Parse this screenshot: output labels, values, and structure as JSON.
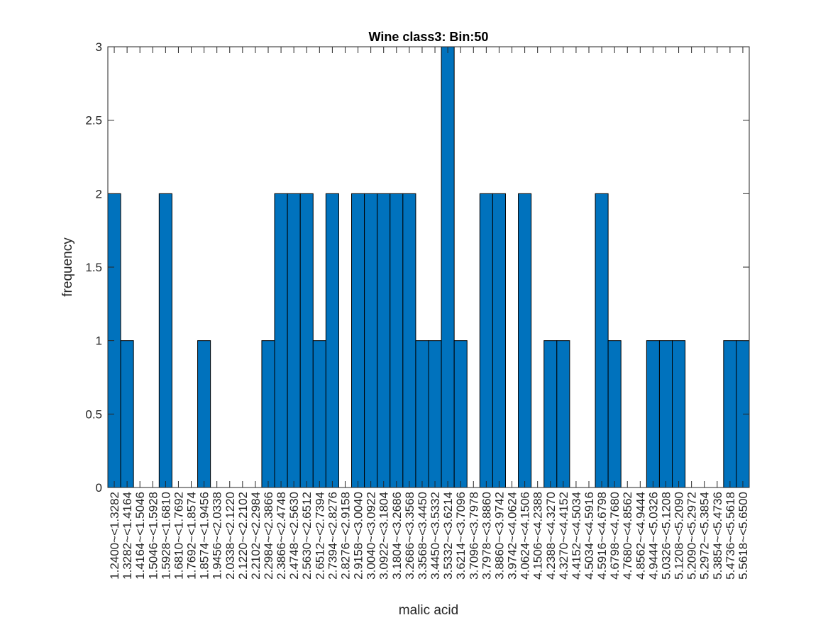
{
  "chart_data": {
    "type": "bar",
    "title": "Wine class3: Bin:50",
    "xlabel": "malic acid",
    "ylabel": "frequency",
    "ylim": [
      0,
      3
    ],
    "yticks": [
      "0",
      "0.5",
      "1",
      "1.5",
      "2",
      "2.5",
      "3"
    ],
    "grid": false,
    "bar_color": "#0072BD",
    "categories": [
      "1.2400~<1.3282",
      "1.3282~<1.4164",
      "1.4164~<1.5046",
      "1.5046~<1.5928",
      "1.5928~<1.6810",
      "1.6810~<1.7692",
      "1.7692~<1.8574",
      "1.8574~<1.9456",
      "1.9456~<2.0338",
      "2.0338~<2.1220",
      "2.1220~<2.2102",
      "2.2102~<2.2984",
      "2.2984~<2.3866",
      "2.3866~<2.4748",
      "2.4748~<2.5630",
      "2.5630~<2.6512",
      "2.6512~<2.7394",
      "2.7394~<2.8276",
      "2.8276~<2.9158",
      "2.9158~<3.0040",
      "3.0040~<3.0922",
      "3.0922~<3.1804",
      "3.1804~<3.2686",
      "3.2686~<3.3568",
      "3.3568~<3.4450",
      "3.4450~<3.5332",
      "3.5332~<3.6214",
      "3.6214~<3.7096",
      "3.7096~<3.7978",
      "3.7978~<3.8860",
      "3.8860~<3.9742",
      "3.9742~<4.0624",
      "4.0624~<4.1506",
      "4.1506~<4.2388",
      "4.2388~<4.3270",
      "4.3270~<4.4152",
      "4.4152~<4.5034",
      "4.5034~<4.5916",
      "4.5916~<4.6798",
      "4.6798~<4.7680",
      "4.7680~<4.8562",
      "4.8562~<4.9444",
      "4.9444~<5.0326",
      "5.0326~<5.1208",
      "5.1208~<5.2090",
      "5.2090~<5.2972",
      "5.2972~<5.3854",
      "5.3854~<5.4736",
      "5.4736~<5.5618",
      "5.5618~<5.6500"
    ],
    "values": [
      2,
      1,
      0,
      0,
      2,
      0,
      0,
      1,
      0,
      0,
      0,
      0,
      1,
      2,
      2,
      2,
      1,
      2,
      0,
      2,
      2,
      2,
      2,
      2,
      1,
      1,
      3,
      1,
      0,
      2,
      2,
      0,
      2,
      0,
      1,
      1,
      0,
      0,
      2,
      1,
      0,
      0,
      1,
      1,
      1,
      0,
      0,
      0,
      1,
      1
    ]
  }
}
